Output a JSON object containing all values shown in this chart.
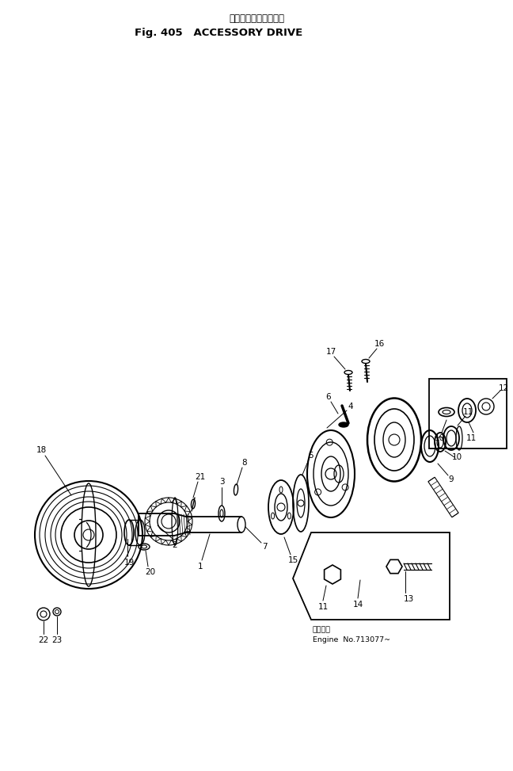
{
  "title_jp": "アクセサリ　ドライブ",
  "title_en": "Fig. 405   ACCESSORY DRIVE",
  "bg_color": "#ffffff",
  "fig_width": 6.48,
  "fig_height": 9.73,
  "note_jp": "適用号機",
  "note_en": "Engine  No.713077~"
}
